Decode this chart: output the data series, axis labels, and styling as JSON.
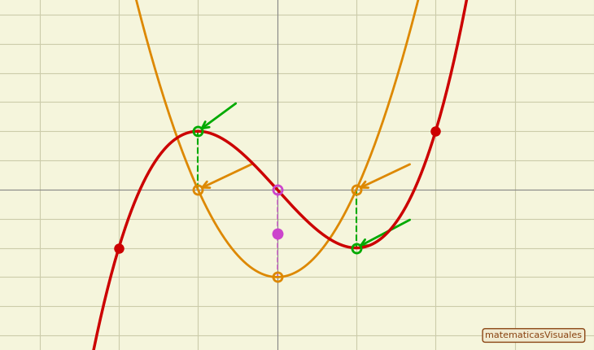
{
  "background_color": "#f5f5dc",
  "grid_color": "#ccccaa",
  "cubic_color": "#cc0000",
  "derivative_color": "#dd8800",
  "green_color": "#00aa00",
  "pink_color": "#cc44cc",
  "xlim": [
    -3.5,
    4.0
  ],
  "ylim": [
    -5.5,
    6.5
  ],
  "cubic_a": 1,
  "cubic_b": 0,
  "cubic_c": -3,
  "cubic_d": 0,
  "deriv_scale": 0.5,
  "stat_x1": -1.0,
  "stat_x2": 1.0,
  "inflection_x": 0.0
}
